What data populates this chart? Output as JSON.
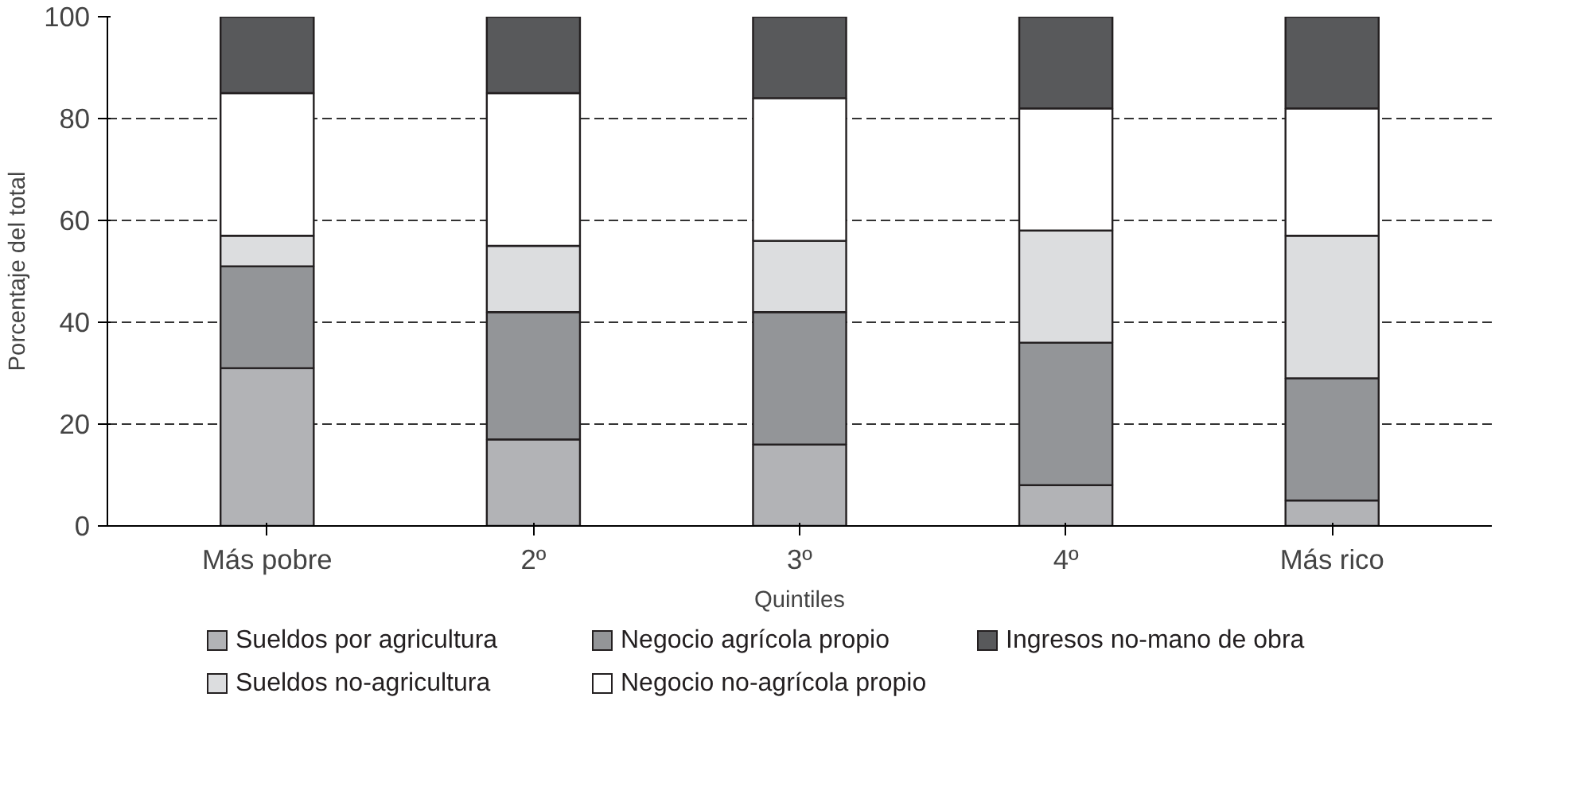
{
  "chart_data": {
    "type": "bar",
    "stacked": true,
    "xlabel": "Quintiles",
    "ylabel": "Porcentaje del total",
    "categories": [
      "Más pobre",
      "2º",
      "3º",
      "4º",
      "Más rico"
    ],
    "series": [
      {
        "name": "Sueldos por agricultura",
        "color": "#b2b3b6",
        "values": [
          31,
          17,
          16,
          8,
          5
        ]
      },
      {
        "name": "Negocio agrícola propio",
        "color": "#939598",
        "values": [
          20,
          25,
          26,
          28,
          24
        ]
      },
      {
        "name": "Sueldos no-agricultura",
        "color": "#dcdddf",
        "values": [
          6,
          13,
          14,
          22,
          28
        ]
      },
      {
        "name": "Negocio no-agrícola propio",
        "color": "#ffffff",
        "values": [
          28,
          30,
          28,
          24,
          25
        ]
      },
      {
        "name": "Ingresos no-mano de obra",
        "color": "#58595b",
        "values": [
          15,
          15,
          16,
          18,
          18
        ]
      }
    ],
    "ylim": [
      0,
      100
    ],
    "yticks": [
      0,
      20,
      40,
      60,
      80,
      100
    ],
    "grid": "y",
    "legend": "bottom"
  }
}
